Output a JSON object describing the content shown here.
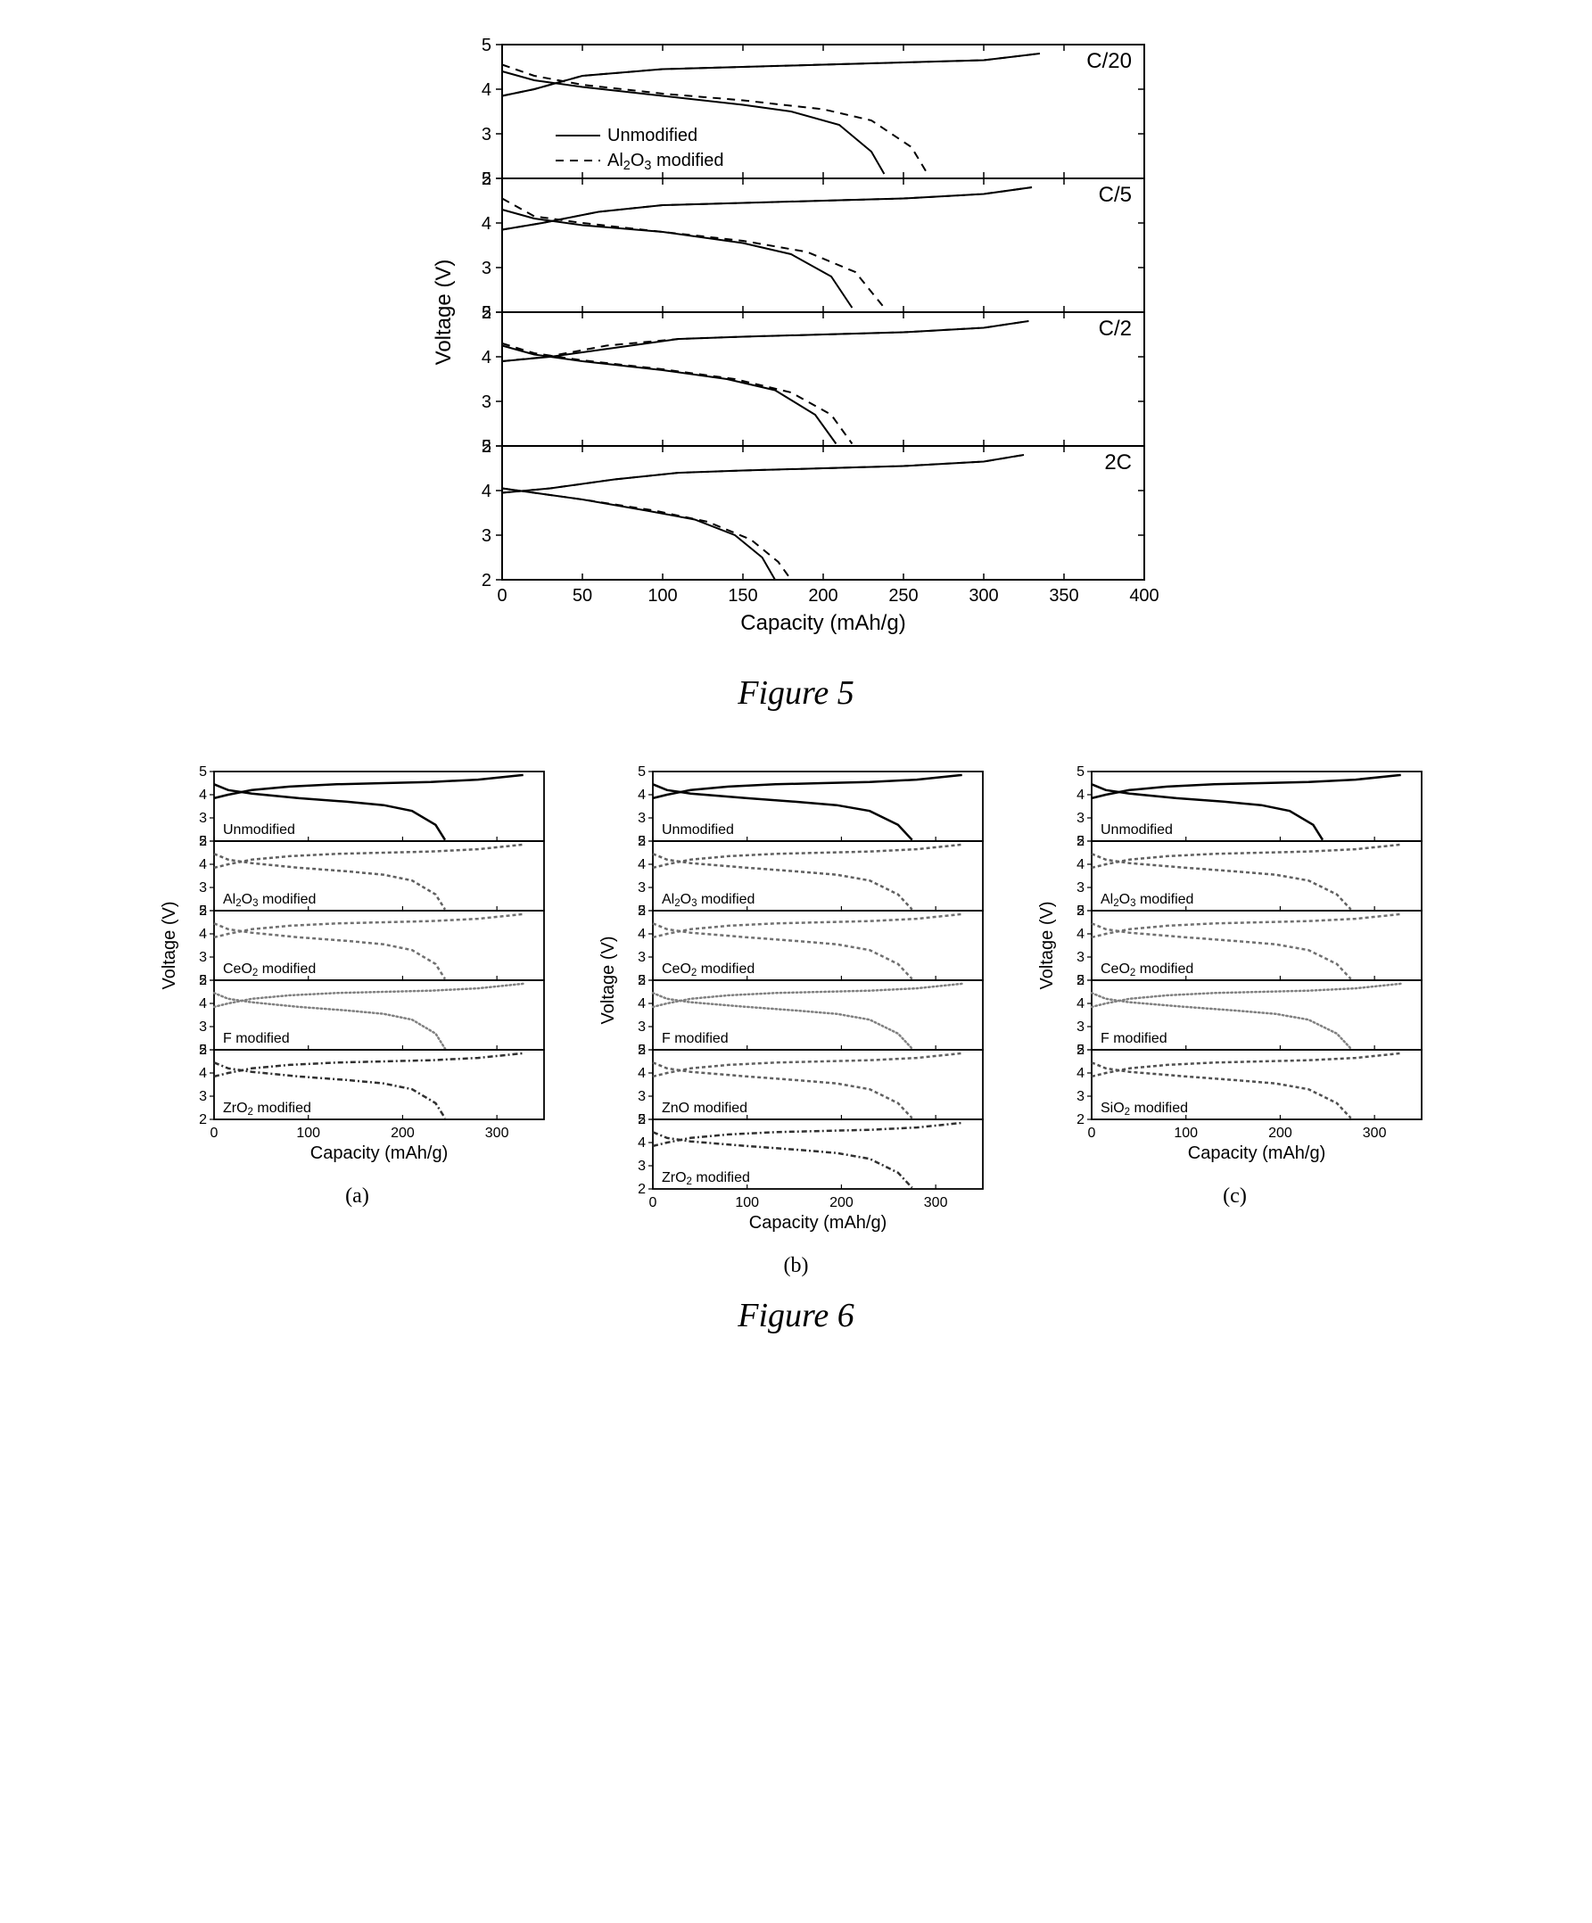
{
  "fig5": {
    "caption": "Figure 5",
    "xlabel": "Capacity (mAh/g)",
    "ylabel": "Voltage (V)",
    "xlim": [
      0,
      400
    ],
    "xticks": [
      0,
      50,
      100,
      150,
      200,
      250,
      300,
      350,
      400
    ],
    "ylim": [
      2,
      5
    ],
    "yticks": [
      2,
      3,
      4,
      5
    ],
    "legend": {
      "solid": "Unmodified",
      "dashed_label_prefix": "Al",
      "dashed_label_sub1": "2",
      "dashed_label_mid": "O",
      "dashed_label_sub2": "3",
      "dashed_label_suffix": " modified"
    },
    "panel_label_fontsize": 24,
    "axis_fontsize": 24,
    "tick_fontsize": 20,
    "legend_fontsize": 20,
    "line_width": 2.0,
    "line_color": "#000000",
    "background_color": "#ffffff",
    "panels": [
      {
        "label": "C/20",
        "charge_solid": [
          [
            0,
            3.85
          ],
          [
            20,
            4.0
          ],
          [
            50,
            4.3
          ],
          [
            100,
            4.45
          ],
          [
            150,
            4.5
          ],
          [
            200,
            4.55
          ],
          [
            250,
            4.6
          ],
          [
            300,
            4.65
          ],
          [
            335,
            4.8
          ]
        ],
        "charge_dashed": [
          [
            0,
            3.85
          ],
          [
            20,
            4.0
          ],
          [
            50,
            4.3
          ],
          [
            100,
            4.45
          ],
          [
            150,
            4.5
          ],
          [
            200,
            4.55
          ],
          [
            250,
            4.6
          ],
          [
            300,
            4.65
          ],
          [
            335,
            4.8
          ]
        ],
        "discharge_solid": [
          [
            0,
            4.4
          ],
          [
            20,
            4.2
          ],
          [
            50,
            4.05
          ],
          [
            100,
            3.85
          ],
          [
            150,
            3.65
          ],
          [
            180,
            3.5
          ],
          [
            210,
            3.2
          ],
          [
            230,
            2.6
          ],
          [
            238,
            2.1
          ]
        ],
        "discharge_dashed": [
          [
            0,
            4.55
          ],
          [
            20,
            4.3
          ],
          [
            50,
            4.1
          ],
          [
            100,
            3.9
          ],
          [
            150,
            3.75
          ],
          [
            200,
            3.55
          ],
          [
            230,
            3.3
          ],
          [
            255,
            2.7
          ],
          [
            265,
            2.1
          ]
        ]
      },
      {
        "label": "C/5",
        "charge_solid": [
          [
            0,
            3.85
          ],
          [
            25,
            4.0
          ],
          [
            60,
            4.25
          ],
          [
            100,
            4.4
          ],
          [
            150,
            4.45
          ],
          [
            200,
            4.5
          ],
          [
            250,
            4.55
          ],
          [
            300,
            4.65
          ],
          [
            330,
            4.8
          ]
        ],
        "charge_dashed": [
          [
            0,
            3.85
          ],
          [
            25,
            4.0
          ],
          [
            60,
            4.25
          ],
          [
            100,
            4.4
          ],
          [
            150,
            4.45
          ],
          [
            200,
            4.5
          ],
          [
            250,
            4.55
          ],
          [
            300,
            4.65
          ],
          [
            330,
            4.8
          ]
        ],
        "discharge_solid": [
          [
            0,
            4.3
          ],
          [
            20,
            4.1
          ],
          [
            50,
            3.95
          ],
          [
            100,
            3.8
          ],
          [
            150,
            3.55
          ],
          [
            180,
            3.3
          ],
          [
            205,
            2.8
          ],
          [
            218,
            2.1
          ]
        ],
        "discharge_dashed": [
          [
            0,
            4.55
          ],
          [
            20,
            4.15
          ],
          [
            50,
            4.0
          ],
          [
            100,
            3.8
          ],
          [
            150,
            3.6
          ],
          [
            190,
            3.35
          ],
          [
            220,
            2.9
          ],
          [
            238,
            2.1
          ]
        ]
      },
      {
        "label": "C/2",
        "charge_solid": [
          [
            0,
            3.9
          ],
          [
            30,
            4.0
          ],
          [
            70,
            4.2
          ],
          [
            110,
            4.4
          ],
          [
            150,
            4.45
          ],
          [
            200,
            4.5
          ],
          [
            250,
            4.55
          ],
          [
            300,
            4.65
          ],
          [
            328,
            4.8
          ]
        ],
        "charge_dashed": [
          [
            0,
            3.9
          ],
          [
            28,
            4.0
          ],
          [
            65,
            4.25
          ],
          [
            110,
            4.4
          ],
          [
            150,
            4.45
          ],
          [
            200,
            4.5
          ],
          [
            250,
            4.55
          ],
          [
            300,
            4.65
          ],
          [
            328,
            4.8
          ]
        ],
        "discharge_solid": [
          [
            0,
            4.25
          ],
          [
            20,
            4.05
          ],
          [
            50,
            3.9
          ],
          [
            100,
            3.7
          ],
          [
            140,
            3.5
          ],
          [
            170,
            3.25
          ],
          [
            195,
            2.7
          ],
          [
            208,
            2.05
          ]
        ],
        "discharge_dashed": [
          [
            0,
            4.3
          ],
          [
            20,
            4.08
          ],
          [
            50,
            3.92
          ],
          [
            100,
            3.72
          ],
          [
            145,
            3.5
          ],
          [
            180,
            3.2
          ],
          [
            205,
            2.7
          ],
          [
            218,
            2.05
          ]
        ]
      },
      {
        "label": "2C",
        "charge_solid": [
          [
            0,
            3.95
          ],
          [
            30,
            4.05
          ],
          [
            70,
            4.25
          ],
          [
            110,
            4.4
          ],
          [
            150,
            4.45
          ],
          [
            200,
            4.5
          ],
          [
            250,
            4.55
          ],
          [
            300,
            4.65
          ],
          [
            325,
            4.8
          ]
        ],
        "charge_dashed": [
          [
            0,
            3.95
          ],
          [
            30,
            4.05
          ],
          [
            70,
            4.25
          ],
          [
            110,
            4.4
          ],
          [
            150,
            4.45
          ],
          [
            200,
            4.5
          ],
          [
            250,
            4.55
          ],
          [
            300,
            4.65
          ],
          [
            325,
            4.8
          ]
        ],
        "discharge_solid": [
          [
            0,
            4.05
          ],
          [
            20,
            3.95
          ],
          [
            50,
            3.8
          ],
          [
            90,
            3.55
          ],
          [
            120,
            3.35
          ],
          [
            145,
            3.0
          ],
          [
            162,
            2.5
          ],
          [
            170,
            2.0
          ]
        ],
        "discharge_dashed": [
          [
            0,
            4.05
          ],
          [
            20,
            3.95
          ],
          [
            50,
            3.8
          ],
          [
            95,
            3.55
          ],
          [
            128,
            3.3
          ],
          [
            155,
            2.9
          ],
          [
            172,
            2.4
          ],
          [
            180,
            2.0
          ]
        ]
      }
    ]
  },
  "fig6": {
    "caption": "Figure 6",
    "xlabel": "Capacity (mAh/g)",
    "ylabel": "Voltage (V)",
    "xlim": [
      0,
      350
    ],
    "xticks": [
      0,
      100,
      200,
      300
    ],
    "ylim": [
      2,
      5
    ],
    "yticks": [
      2,
      3,
      4,
      5
    ],
    "axis_fontsize": 20,
    "tick_fontsize": 16,
    "label_fontsize": 16,
    "line_width": 2.5,
    "background_color": "#ffffff",
    "standard_curves": {
      "charge": [
        [
          0,
          3.85
        ],
        [
          15,
          4.0
        ],
        [
          40,
          4.2
        ],
        [
          80,
          4.35
        ],
        [
          130,
          4.45
        ],
        [
          180,
          4.5
        ],
        [
          230,
          4.55
        ],
        [
          280,
          4.65
        ],
        [
          328,
          4.85
        ]
      ],
      "discharge": [
        [
          0,
          4.45
        ],
        [
          15,
          4.2
        ],
        [
          40,
          4.05
        ],
        [
          90,
          3.85
        ],
        [
          140,
          3.7
        ],
        [
          180,
          3.55
        ],
        [
          210,
          3.3
        ],
        [
          235,
          2.7
        ],
        [
          245,
          2.05
        ]
      ],
      "discharge_long": [
        [
          0,
          4.45
        ],
        [
          15,
          4.2
        ],
        [
          40,
          4.05
        ],
        [
          100,
          3.85
        ],
        [
          150,
          3.7
        ],
        [
          195,
          3.55
        ],
        [
          230,
          3.3
        ],
        [
          260,
          2.7
        ],
        [
          275,
          2.05
        ]
      ]
    },
    "sub_a": {
      "sublabel": "(a)",
      "rows": [
        {
          "label_parts": [
            {
              "t": "Unmodified"
            }
          ],
          "style": "solid",
          "color": "#000000"
        },
        {
          "label_parts": [
            {
              "t": "Al"
            },
            {
              "t": "2",
              "sub": true
            },
            {
              "t": "O"
            },
            {
              "t": "3",
              "sub": true
            },
            {
              "t": " modified"
            }
          ],
          "style": "hatch",
          "color": "#606060"
        },
        {
          "label_parts": [
            {
              "t": "CeO"
            },
            {
              "t": "2",
              "sub": true
            },
            {
              "t": " modified"
            }
          ],
          "style": "hatch",
          "color": "#707070"
        },
        {
          "label_parts": [
            {
              "t": "F modified"
            }
          ],
          "style": "dots",
          "color": "#808080"
        },
        {
          "label_parts": [
            {
              "t": "ZrO"
            },
            {
              "t": "2",
              "sub": true
            },
            {
              "t": " modified"
            }
          ],
          "style": "cross",
          "color": "#303030"
        }
      ]
    },
    "sub_b": {
      "sublabel": "(b)",
      "rows": [
        {
          "label_parts": [
            {
              "t": "Unmodified"
            }
          ],
          "style": "solid",
          "color": "#000000",
          "long": true
        },
        {
          "label_parts": [
            {
              "t": "Al"
            },
            {
              "t": "2",
              "sub": true
            },
            {
              "t": "O"
            },
            {
              "t": "3",
              "sub": true
            },
            {
              "t": " modified"
            }
          ],
          "style": "hatch",
          "color": "#606060",
          "long": true
        },
        {
          "label_parts": [
            {
              "t": "CeO"
            },
            {
              "t": "2",
              "sub": true
            },
            {
              "t": " modified"
            }
          ],
          "style": "hatch",
          "color": "#707070",
          "long": true
        },
        {
          "label_parts": [
            {
              "t": "F modified"
            }
          ],
          "style": "dots",
          "color": "#808080",
          "long": true
        },
        {
          "label_parts": [
            {
              "t": "ZnO modified"
            }
          ],
          "style": "hatch",
          "color": "#606060",
          "long": true
        },
        {
          "label_parts": [
            {
              "t": "ZrO"
            },
            {
              "t": "2",
              "sub": true
            },
            {
              "t": " modified"
            }
          ],
          "style": "cross",
          "color": "#303030",
          "long": true
        }
      ]
    },
    "sub_c": {
      "sublabel": "(c)",
      "rows": [
        {
          "label_parts": [
            {
              "t": "Unmodified"
            }
          ],
          "style": "solid",
          "color": "#000000"
        },
        {
          "label_parts": [
            {
              "t": "Al"
            },
            {
              "t": "2",
              "sub": true
            },
            {
              "t": "O"
            },
            {
              "t": "3",
              "sub": true
            },
            {
              "t": " modified"
            }
          ],
          "style": "hatch",
          "color": "#606060",
          "long": true
        },
        {
          "label_parts": [
            {
              "t": "CeO"
            },
            {
              "t": "2",
              "sub": true
            },
            {
              "t": " modified"
            }
          ],
          "style": "hatch",
          "color": "#707070",
          "long": true
        },
        {
          "label_parts": [
            {
              "t": "F modified"
            }
          ],
          "style": "dots",
          "color": "#808080",
          "long": true
        },
        {
          "label_parts": [
            {
              "t": "SiO"
            },
            {
              "t": "2",
              "sub": true
            },
            {
              "t": " modified"
            }
          ],
          "style": "hatch",
          "color": "#505050",
          "long": true
        }
      ]
    }
  }
}
